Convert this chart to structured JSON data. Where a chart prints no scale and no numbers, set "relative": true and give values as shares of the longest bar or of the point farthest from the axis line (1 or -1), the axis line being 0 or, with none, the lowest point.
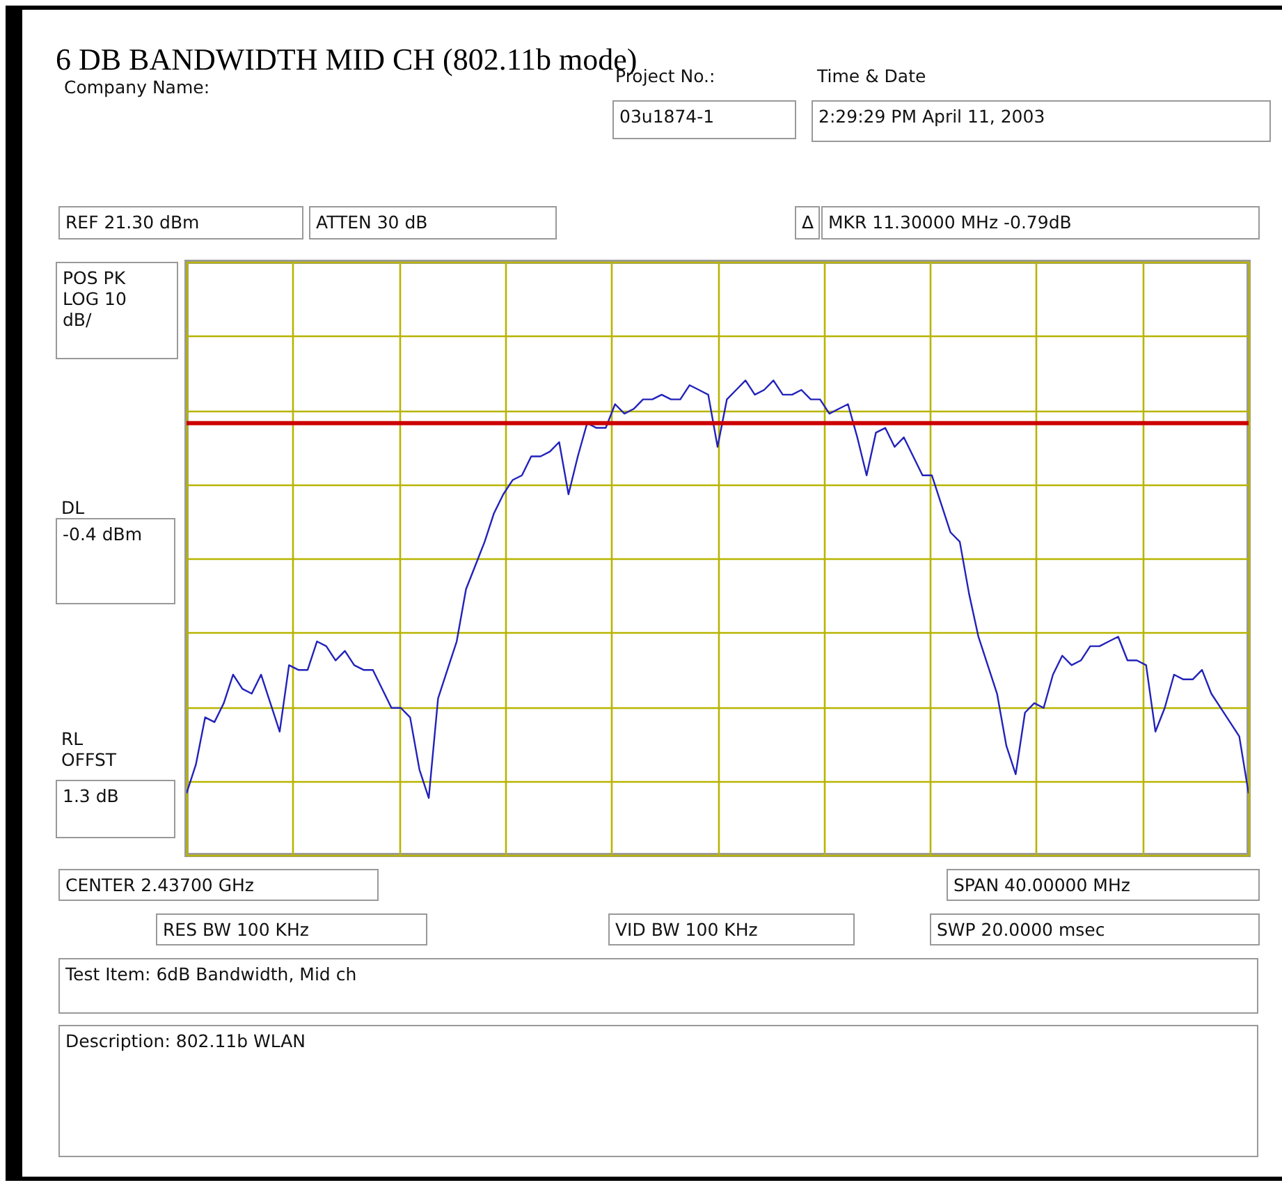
{
  "chart_data": {
    "type": "line",
    "title": "6 DB BANDWIDTH MID CH (802.11b mode)",
    "relative": true,
    "grid": true,
    "categories": [
      null,
      null,
      null,
      null,
      null,
      null,
      null,
      null,
      null,
      null,
      null,
      null,
      null,
      null,
      null,
      null,
      null,
      null,
      null,
      null,
      null,
      null,
      null,
      null,
      null,
      null,
      null,
      null,
      null,
      null,
      null,
      null,
      null,
      null,
      null,
      null,
      null,
      null,
      null,
      null,
      null,
      null,
      null,
      null,
      null,
      null,
      null,
      null,
      null,
      null,
      null,
      null,
      null,
      null,
      null,
      null,
      null,
      null,
      null,
      null,
      null,
      null,
      null,
      null,
      null,
      null,
      null,
      null,
      null,
      null,
      null,
      null,
      null,
      null,
      null,
      null,
      null,
      null,
      null,
      null,
      null,
      null,
      null,
      null,
      null,
      null,
      null,
      null,
      null,
      null,
      null,
      null,
      null,
      null,
      null,
      null,
      null,
      null,
      null,
      null,
      null,
      null,
      null,
      null,
      null,
      null,
      null,
      null,
      null,
      null,
      null,
      null,
      null,
      null,
      null
    ],
    "series": [
      {
        "color": "#2222bb",
        "values": [
          0.13,
          0.19,
          0.29,
          0.28,
          0.32,
          0.38,
          0.35,
          0.34,
          0.38,
          0.32,
          0.26,
          0.4,
          0.39,
          0.39,
          0.45,
          0.44,
          0.41,
          0.43,
          0.4,
          0.39,
          0.39,
          0.35,
          0.31,
          0.31,
          0.29,
          0.18,
          0.12,
          0.33,
          0.39,
          0.45,
          0.56,
          0.61,
          0.66,
          0.72,
          0.76,
          0.79,
          0.8,
          0.84,
          0.84,
          0.85,
          0.87,
          0.76,
          0.84,
          0.91,
          0.9,
          0.9,
          0.95,
          0.93,
          0.94,
          0.96,
          0.96,
          0.97,
          0.96,
          0.96,
          0.99,
          0.98,
          0.97,
          0.86,
          0.96,
          0.98,
          1.0,
          0.97,
          0.98,
          1.0,
          0.97,
          0.97,
          0.98,
          0.96,
          0.96,
          0.93,
          0.94,
          0.95,
          0.88,
          0.8,
          0.89,
          0.9,
          0.86,
          0.88,
          0.84,
          0.8,
          0.8,
          0.74,
          0.68,
          0.66,
          0.55,
          0.46,
          0.4,
          0.34,
          0.23,
          0.17,
          0.3,
          0.32,
          0.31,
          0.38,
          0.42,
          0.4,
          0.41,
          0.44,
          0.44,
          0.45,
          0.46,
          0.41,
          0.41,
          0.4,
          0.26,
          0.31,
          0.38,
          0.37,
          0.37,
          0.39,
          0.34,
          0.31,
          0.28,
          0.25,
          0.13
        ]
      }
    ],
    "ref_lines": [
      {
        "axis": "y",
        "value": 0.91,
        "color": "#cc0000"
      }
    ],
    "annotations": [
      "Company Name:",
      "Project No.:",
      "03u1874-1",
      "Time & Date",
      "2:29:29 PM April 11, 2003",
      "REF 21.30 dBm",
      "ATTEN 30 dB",
      "Δ",
      "MKR 11.30000 MHz   -0.79dB",
      "POS PK\nLOG 10\ndB/",
      "DL",
      "-0.4 dBm",
      "RL\nOFFST",
      "1.3 dB",
      "CENTER 2.43700 GHz",
      "SPAN 40.00000 MHz",
      "RES BW 100 KHz",
      "VID BW 100 KHz",
      "SWP  20.0000 msec",
      "Test Item: 6dB Bandwidth, Mid ch",
      "Description: 802.11b WLAN"
    ]
  }
}
